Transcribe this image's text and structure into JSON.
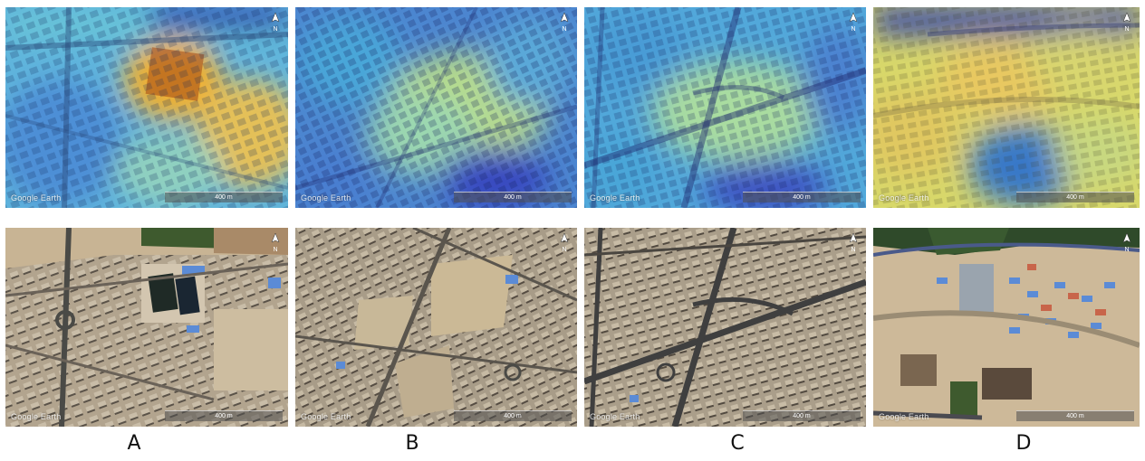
{
  "figure": {
    "columns": [
      {
        "id": "A",
        "label": "A",
        "watermark": "Google Earth",
        "scale_text": "400 m",
        "north_text": "N"
      },
      {
        "id": "B",
        "label": "B",
        "watermark": "Google Earth",
        "scale_text": "400 m",
        "north_text": "N"
      },
      {
        "id": "C",
        "label": "C",
        "watermark": "Google Earth",
        "scale_text": "400 m",
        "north_text": "N"
      },
      {
        "id": "D",
        "label": "D",
        "watermark": "Google Earth",
        "scale_text": "400 m",
        "north_text": "N"
      }
    ],
    "rows": [
      "heatmap-overlay",
      "satellite-imagery"
    ],
    "colors": {
      "heat_low": "#3a4fc4",
      "heat_mid_low": "#4fb6d8",
      "heat_mid": "#8fd6b0",
      "heat_high": "#e8d36a",
      "heat_max": "#d98a2a",
      "ground": "#b8a890",
      "roads": "#3f3f3f",
      "roof_blue": "#5b8bd6",
      "roof_red": "#c8654a",
      "field_green": "#3e5a2e"
    }
  }
}
